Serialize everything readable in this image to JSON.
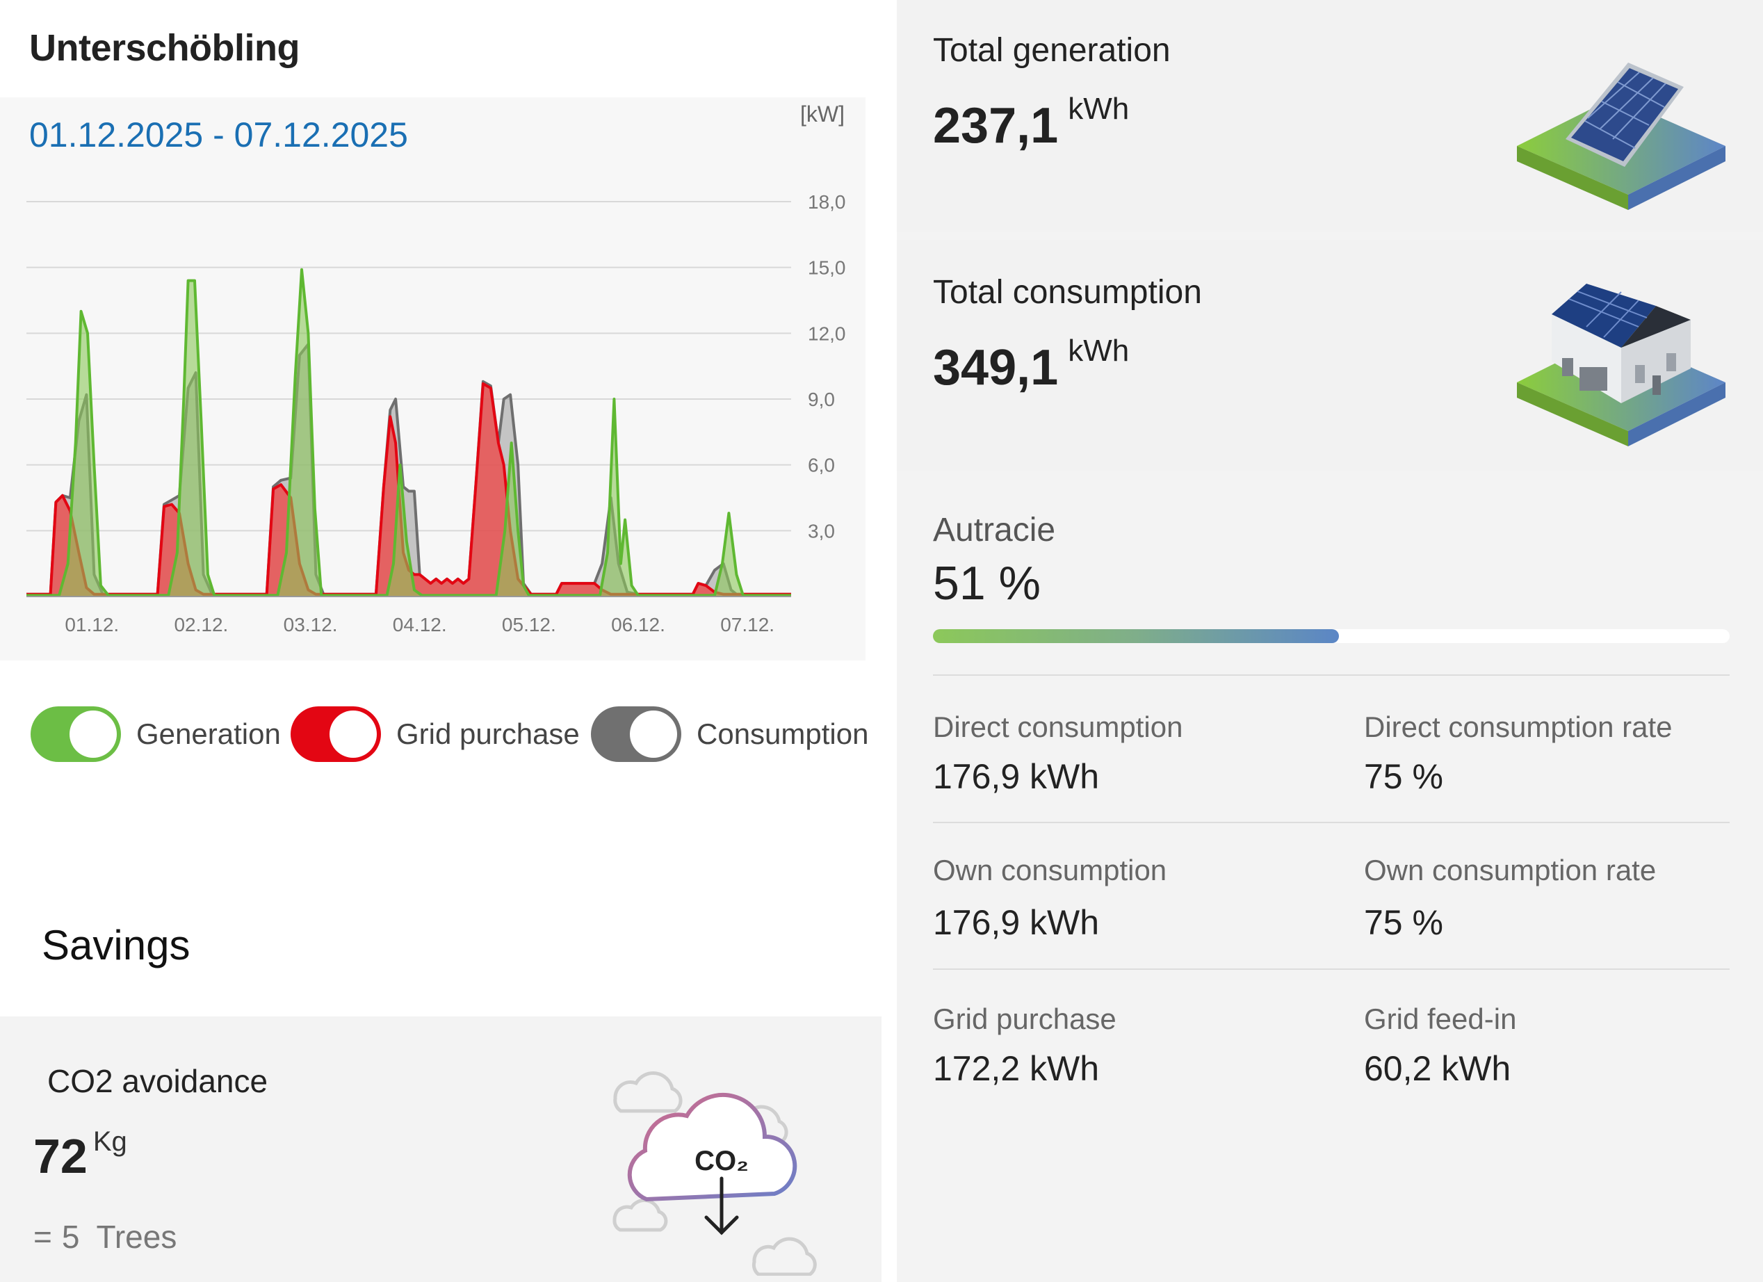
{
  "header": {
    "title": "Unterschöbling"
  },
  "chart": {
    "date_range": "01.12.2025 - 07.12.2025",
    "unit": "[kW]",
    "y_ticks": [
      "18,0",
      "15,0",
      "12,0",
      "9,0",
      "6,0",
      "3,0"
    ],
    "x_ticks": [
      "01.12.",
      "02.12.",
      "03.12.",
      "04.12.",
      "05.12.",
      "06.12.",
      "07.12."
    ]
  },
  "chart_data": {
    "type": "area",
    "ylim": [
      0,
      18
    ],
    "y_axis_label": "[kW]",
    "x_range": [
      0,
      7
    ],
    "grid": true,
    "series": [
      {
        "name": "Consumption",
        "color": "#777777",
        "points": [
          [
            0,
            0.1
          ],
          [
            0.22,
            0.1
          ],
          [
            0.27,
            4.3
          ],
          [
            0.33,
            4.6
          ],
          [
            0.4,
            4.5
          ],
          [
            0.48,
            8
          ],
          [
            0.55,
            9.2
          ],
          [
            0.62,
            1
          ],
          [
            0.7,
            0.1
          ],
          [
            1.2,
            0.1
          ],
          [
            1.26,
            4.2
          ],
          [
            1.33,
            4.4
          ],
          [
            1.4,
            4.6
          ],
          [
            1.48,
            9.5
          ],
          [
            1.55,
            10.2
          ],
          [
            1.62,
            1
          ],
          [
            1.7,
            0.1
          ],
          [
            2.2,
            0.1
          ],
          [
            2.26,
            5
          ],
          [
            2.33,
            5.3
          ],
          [
            2.42,
            5.4
          ],
          [
            2.5,
            11
          ],
          [
            2.58,
            11.5
          ],
          [
            2.65,
            1
          ],
          [
            2.72,
            0.1
          ],
          [
            3.2,
            0.1
          ],
          [
            3.27,
            5
          ],
          [
            3.33,
            8.5
          ],
          [
            3.38,
            9
          ],
          [
            3.45,
            5
          ],
          [
            3.5,
            4.8
          ],
          [
            3.55,
            4.8
          ],
          [
            3.6,
            1
          ],
          [
            3.65,
            0.8
          ],
          [
            3.7,
            0.6
          ],
          [
            3.75,
            0.8
          ],
          [
            3.8,
            0.6
          ],
          [
            3.85,
            0.8
          ],
          [
            3.9,
            0.6
          ],
          [
            3.95,
            0.8
          ],
          [
            4.0,
            0.6
          ],
          [
            4.05,
            0.8
          ],
          [
            4.12,
            5.5
          ],
          [
            4.18,
            9.8
          ],
          [
            4.25,
            9.6
          ],
          [
            4.32,
            7
          ],
          [
            4.37,
            9
          ],
          [
            4.43,
            9.2
          ],
          [
            4.5,
            6
          ],
          [
            4.55,
            0.6
          ],
          [
            4.62,
            0.1
          ],
          [
            4.85,
            0.1
          ],
          [
            4.9,
            0.6
          ],
          [
            5.2,
            0.6
          ],
          [
            5.27,
            1.5
          ],
          [
            5.35,
            4.5
          ],
          [
            5.42,
            1.5
          ],
          [
            5.5,
            0.2
          ],
          [
            5.6,
            0.1
          ],
          [
            6.1,
            0.1
          ],
          [
            6.15,
            0.6
          ],
          [
            6.22,
            0.5
          ],
          [
            6.3,
            1.2
          ],
          [
            6.38,
            1.5
          ],
          [
            6.45,
            0.3
          ],
          [
            6.5,
            0.1
          ],
          [
            7,
            0.1
          ]
        ]
      },
      {
        "name": "Grid purchase",
        "color": "#e30613",
        "points": [
          [
            0,
            0.1
          ],
          [
            0.22,
            0.1
          ],
          [
            0.27,
            4.3
          ],
          [
            0.33,
            4.6
          ],
          [
            0.4,
            3.9
          ],
          [
            0.48,
            2
          ],
          [
            0.55,
            0.4
          ],
          [
            0.62,
            0.1
          ],
          [
            1.2,
            0.1
          ],
          [
            1.26,
            4.1
          ],
          [
            1.33,
            4.2
          ],
          [
            1.4,
            3.8
          ],
          [
            1.48,
            1.5
          ],
          [
            1.55,
            0.3
          ],
          [
            1.62,
            0.1
          ],
          [
            2.2,
            0.1
          ],
          [
            2.26,
            4.9
          ],
          [
            2.33,
            5.1
          ],
          [
            2.42,
            4.5
          ],
          [
            2.5,
            1.5
          ],
          [
            2.58,
            0.3
          ],
          [
            2.65,
            0.1
          ],
          [
            3.2,
            0.1
          ],
          [
            3.27,
            5
          ],
          [
            3.33,
            8.2
          ],
          [
            3.38,
            7
          ],
          [
            3.45,
            2
          ],
          [
            3.5,
            1.2
          ],
          [
            3.55,
            1
          ],
          [
            3.6,
            1
          ],
          [
            3.65,
            0.8
          ],
          [
            3.7,
            0.6
          ],
          [
            3.75,
            0.8
          ],
          [
            3.8,
            0.6
          ],
          [
            3.85,
            0.8
          ],
          [
            3.9,
            0.6
          ],
          [
            3.95,
            0.8
          ],
          [
            4.0,
            0.6
          ],
          [
            4.05,
            0.8
          ],
          [
            4.12,
            5.5
          ],
          [
            4.18,
            9.7
          ],
          [
            4.25,
            9.5
          ],
          [
            4.32,
            7
          ],
          [
            4.37,
            6
          ],
          [
            4.43,
            3
          ],
          [
            4.5,
            0.8
          ],
          [
            4.55,
            0.5
          ],
          [
            4.62,
            0.1
          ],
          [
            4.85,
            0.1
          ],
          [
            4.9,
            0.6
          ],
          [
            5.2,
            0.6
          ],
          [
            5.27,
            0.3
          ],
          [
            5.35,
            0.1
          ],
          [
            6.1,
            0.1
          ],
          [
            6.15,
            0.6
          ],
          [
            6.22,
            0.5
          ],
          [
            6.3,
            0.2
          ],
          [
            6.38,
            0.1
          ],
          [
            7,
            0.1
          ]
        ]
      },
      {
        "name": "Generation",
        "color": "#6cbe45",
        "points": [
          [
            0,
            0.05
          ],
          [
            0.3,
            0.05
          ],
          [
            0.38,
            1.5
          ],
          [
            0.45,
            7
          ],
          [
            0.5,
            13
          ],
          [
            0.56,
            12
          ],
          [
            0.62,
            6
          ],
          [
            0.68,
            0.5
          ],
          [
            0.75,
            0.05
          ],
          [
            1.3,
            0.05
          ],
          [
            1.38,
            2
          ],
          [
            1.44,
            9
          ],
          [
            1.48,
            14.4
          ],
          [
            1.54,
            14.4
          ],
          [
            1.6,
            8
          ],
          [
            1.66,
            1
          ],
          [
            1.72,
            0.05
          ],
          [
            2.3,
            0.05
          ],
          [
            2.38,
            2
          ],
          [
            2.46,
            10
          ],
          [
            2.52,
            14.9
          ],
          [
            2.58,
            12
          ],
          [
            2.64,
            4
          ],
          [
            2.7,
            0.05
          ],
          [
            3.3,
            0.05
          ],
          [
            3.36,
            1.5
          ],
          [
            3.42,
            6
          ],
          [
            3.48,
            2.5
          ],
          [
            3.55,
            0.3
          ],
          [
            3.62,
            0.05
          ],
          [
            4.3,
            0.05
          ],
          [
            4.38,
            3
          ],
          [
            4.44,
            7
          ],
          [
            4.5,
            3
          ],
          [
            4.55,
            0.5
          ],
          [
            4.6,
            0.05
          ],
          [
            5.25,
            0.05
          ],
          [
            5.32,
            2
          ],
          [
            5.38,
            9
          ],
          [
            5.44,
            1.5
          ],
          [
            5.48,
            3.5
          ],
          [
            5.54,
            0.5
          ],
          [
            5.6,
            0.05
          ],
          [
            6.3,
            0.05
          ],
          [
            6.37,
            1.5
          ],
          [
            6.43,
            3.8
          ],
          [
            6.5,
            1
          ],
          [
            6.56,
            0.05
          ],
          [
            7,
            0.05
          ]
        ]
      }
    ]
  },
  "legend": {
    "generation": {
      "label": "Generation",
      "color": "#6cbe45"
    },
    "grid_purchase": {
      "label": "Grid purchase",
      "color": "#e30613"
    },
    "consumption": {
      "label": "Consumption",
      "color": "#707070"
    }
  },
  "savings": {
    "title": "Savings",
    "co2": {
      "title": "CO2 avoidance",
      "value": "72",
      "unit": "Kg",
      "trees_eq": "=",
      "trees_count": "5",
      "trees_label": "Trees",
      "icon_text": "CO₂",
      "icon": "co2-cloud-icon"
    }
  },
  "totals": {
    "generation": {
      "label": "Total generation",
      "value": "237,1",
      "unit": "kWh",
      "icon": "solar-panel-icon"
    },
    "consumption": {
      "label": "Total consumption",
      "value": "349,1",
      "unit": "kWh",
      "icon": "house-icon"
    }
  },
  "autarky": {
    "label": "Autracie",
    "value": "51 %",
    "percent": 51
  },
  "metrics": {
    "direct_consumption": {
      "label": "Direct consumption",
      "value": "176,9 kWh"
    },
    "direct_consumption_rate": {
      "label": "Direct consumption rate",
      "value": "75 %"
    },
    "own_consumption": {
      "label": "Own consumption",
      "value": "176,9 kWh"
    },
    "own_consumption_rate": {
      "label": "Own consumption rate",
      "value": "75 %"
    },
    "grid_purchase": {
      "label": "Grid purchase",
      "value": "172,2 kWh"
    },
    "grid_feed_in": {
      "label": "Grid feed-in",
      "value": "60,2 kWh"
    }
  }
}
